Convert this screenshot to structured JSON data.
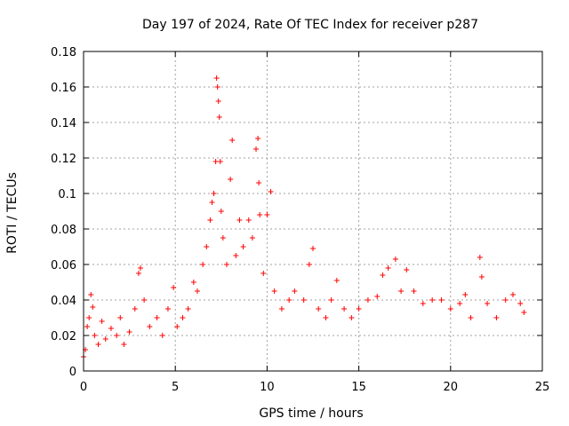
{
  "chart_data": {
    "type": "scatter",
    "title": "Day 197 of 2024, Rate Of TEC Index for receiver p287",
    "xlabel": "GPS time / hours",
    "ylabel": "ROTI / TECUs",
    "xlim": [
      0,
      25
    ],
    "ylim": [
      0,
      0.18
    ],
    "x_ticks": [
      0,
      5,
      10,
      15,
      20,
      25
    ],
    "x_tick_labels": [
      "0",
      "5",
      "10",
      "15",
      "20",
      "25"
    ],
    "y_ticks": [
      0,
      0.02,
      0.04,
      0.06,
      0.08,
      0.1,
      0.12,
      0.14,
      0.16,
      0.18
    ],
    "y_tick_labels": [
      "0",
      "0.02",
      "0.04",
      "0.06",
      "0.08",
      "0.1",
      "0.12",
      "0.14",
      "0.16",
      "0.18"
    ],
    "grid": true,
    "marker": "+",
    "color": "#ff0000",
    "series": [
      {
        "name": "ROTI",
        "points": [
          [
            0.0,
            0.008
          ],
          [
            0.1,
            0.012
          ],
          [
            0.2,
            0.025
          ],
          [
            0.3,
            0.03
          ],
          [
            0.4,
            0.043
          ],
          [
            0.5,
            0.036
          ],
          [
            0.6,
            0.02
          ],
          [
            0.8,
            0.015
          ],
          [
            1.0,
            0.028
          ],
          [
            1.2,
            0.018
          ],
          [
            1.5,
            0.024
          ],
          [
            1.8,
            0.02
          ],
          [
            2.0,
            0.03
          ],
          [
            2.2,
            0.015
          ],
          [
            2.5,
            0.022
          ],
          [
            2.8,
            0.035
          ],
          [
            3.0,
            0.055
          ],
          [
            3.1,
            0.058
          ],
          [
            3.3,
            0.04
          ],
          [
            3.6,
            0.025
          ],
          [
            4.0,
            0.03
          ],
          [
            4.3,
            0.02
          ],
          [
            4.6,
            0.035
          ],
          [
            4.9,
            0.047
          ],
          [
            5.1,
            0.025
          ],
          [
            5.4,
            0.03
          ],
          [
            5.7,
            0.035
          ],
          [
            6.0,
            0.05
          ],
          [
            6.2,
            0.045
          ],
          [
            6.5,
            0.06
          ],
          [
            6.7,
            0.07
          ],
          [
            6.9,
            0.085
          ],
          [
            7.0,
            0.095
          ],
          [
            7.1,
            0.1
          ],
          [
            7.2,
            0.118
          ],
          [
            7.25,
            0.165
          ],
          [
            7.3,
            0.16
          ],
          [
            7.35,
            0.152
          ],
          [
            7.4,
            0.143
          ],
          [
            7.45,
            0.118
          ],
          [
            7.5,
            0.09
          ],
          [
            7.6,
            0.075
          ],
          [
            7.8,
            0.06
          ],
          [
            8.0,
            0.108
          ],
          [
            8.1,
            0.13
          ],
          [
            8.3,
            0.065
          ],
          [
            8.5,
            0.085
          ],
          [
            8.7,
            0.07
          ],
          [
            9.0,
            0.085
          ],
          [
            9.2,
            0.075
          ],
          [
            9.4,
            0.125
          ],
          [
            9.5,
            0.131
          ],
          [
            9.55,
            0.106
          ],
          [
            9.6,
            0.088
          ],
          [
            9.8,
            0.055
          ],
          [
            10.0,
            0.088
          ],
          [
            10.2,
            0.101
          ],
          [
            10.4,
            0.045
          ],
          [
            10.8,
            0.035
          ],
          [
            11.2,
            0.04
          ],
          [
            11.5,
            0.045
          ],
          [
            12.0,
            0.04
          ],
          [
            12.3,
            0.06
          ],
          [
            12.5,
            0.069
          ],
          [
            12.8,
            0.035
          ],
          [
            13.2,
            0.03
          ],
          [
            13.5,
            0.04
          ],
          [
            13.8,
            0.051
          ],
          [
            14.2,
            0.035
          ],
          [
            14.6,
            0.03
          ],
          [
            15.0,
            0.035
          ],
          [
            15.5,
            0.04
          ],
          [
            16.0,
            0.042
          ],
          [
            16.3,
            0.054
          ],
          [
            16.6,
            0.058
          ],
          [
            17.0,
            0.063
          ],
          [
            17.3,
            0.045
          ],
          [
            17.6,
            0.057
          ],
          [
            18.0,
            0.045
          ],
          [
            18.5,
            0.038
          ],
          [
            19.0,
            0.04
          ],
          [
            19.5,
            0.04
          ],
          [
            20.0,
            0.035
          ],
          [
            20.5,
            0.038
          ],
          [
            20.8,
            0.043
          ],
          [
            21.1,
            0.03
          ],
          [
            21.6,
            0.064
          ],
          [
            21.7,
            0.053
          ],
          [
            22.0,
            0.038
          ],
          [
            22.5,
            0.03
          ],
          [
            23.0,
            0.04
          ],
          [
            23.4,
            0.043
          ],
          [
            23.8,
            0.038
          ],
          [
            24.0,
            0.033
          ]
        ]
      }
    ]
  }
}
